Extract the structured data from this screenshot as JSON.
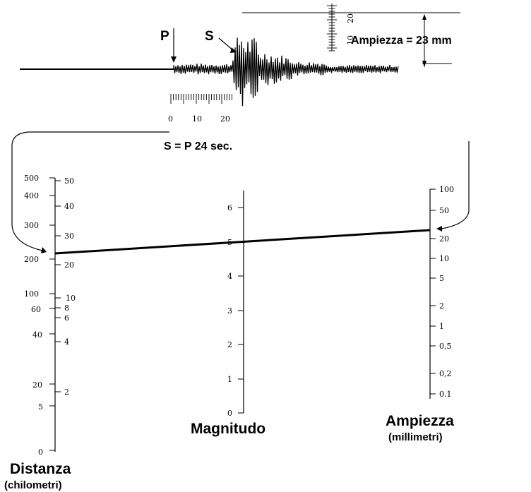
{
  "seismogram": {
    "p_label": "P",
    "s_label": "S",
    "amplitude_note": "Ampiezza = 23 mm",
    "time_ticks": [
      "0",
      "10",
      "20"
    ],
    "mm_ticks": [
      "10",
      "20"
    ],
    "sp_note": "S = P 24 sec."
  },
  "nomogram": {
    "distance": {
      "title": "Distanza",
      "subtitle": "(chilometri)",
      "left_ticks": [
        "500",
        "400",
        "300",
        "200",
        "100",
        "60",
        "40",
        "20",
        "5",
        "0"
      ],
      "right_ticks": [
        "50",
        "40",
        "30",
        "20",
        "10",
        "8",
        "6",
        "4",
        "2"
      ]
    },
    "magnitude": {
      "title": "Magnitudo",
      "ticks": [
        "0",
        "1",
        "2",
        "3",
        "4",
        "5",
        "6"
      ]
    },
    "amplitude": {
      "title": "Ampiezza",
      "subtitle": "(millimetri)",
      "ticks": [
        "100",
        "50",
        "20",
        "10",
        "5",
        "2",
        "1",
        "0,5",
        "0,2",
        "0.1"
      ]
    }
  }
}
